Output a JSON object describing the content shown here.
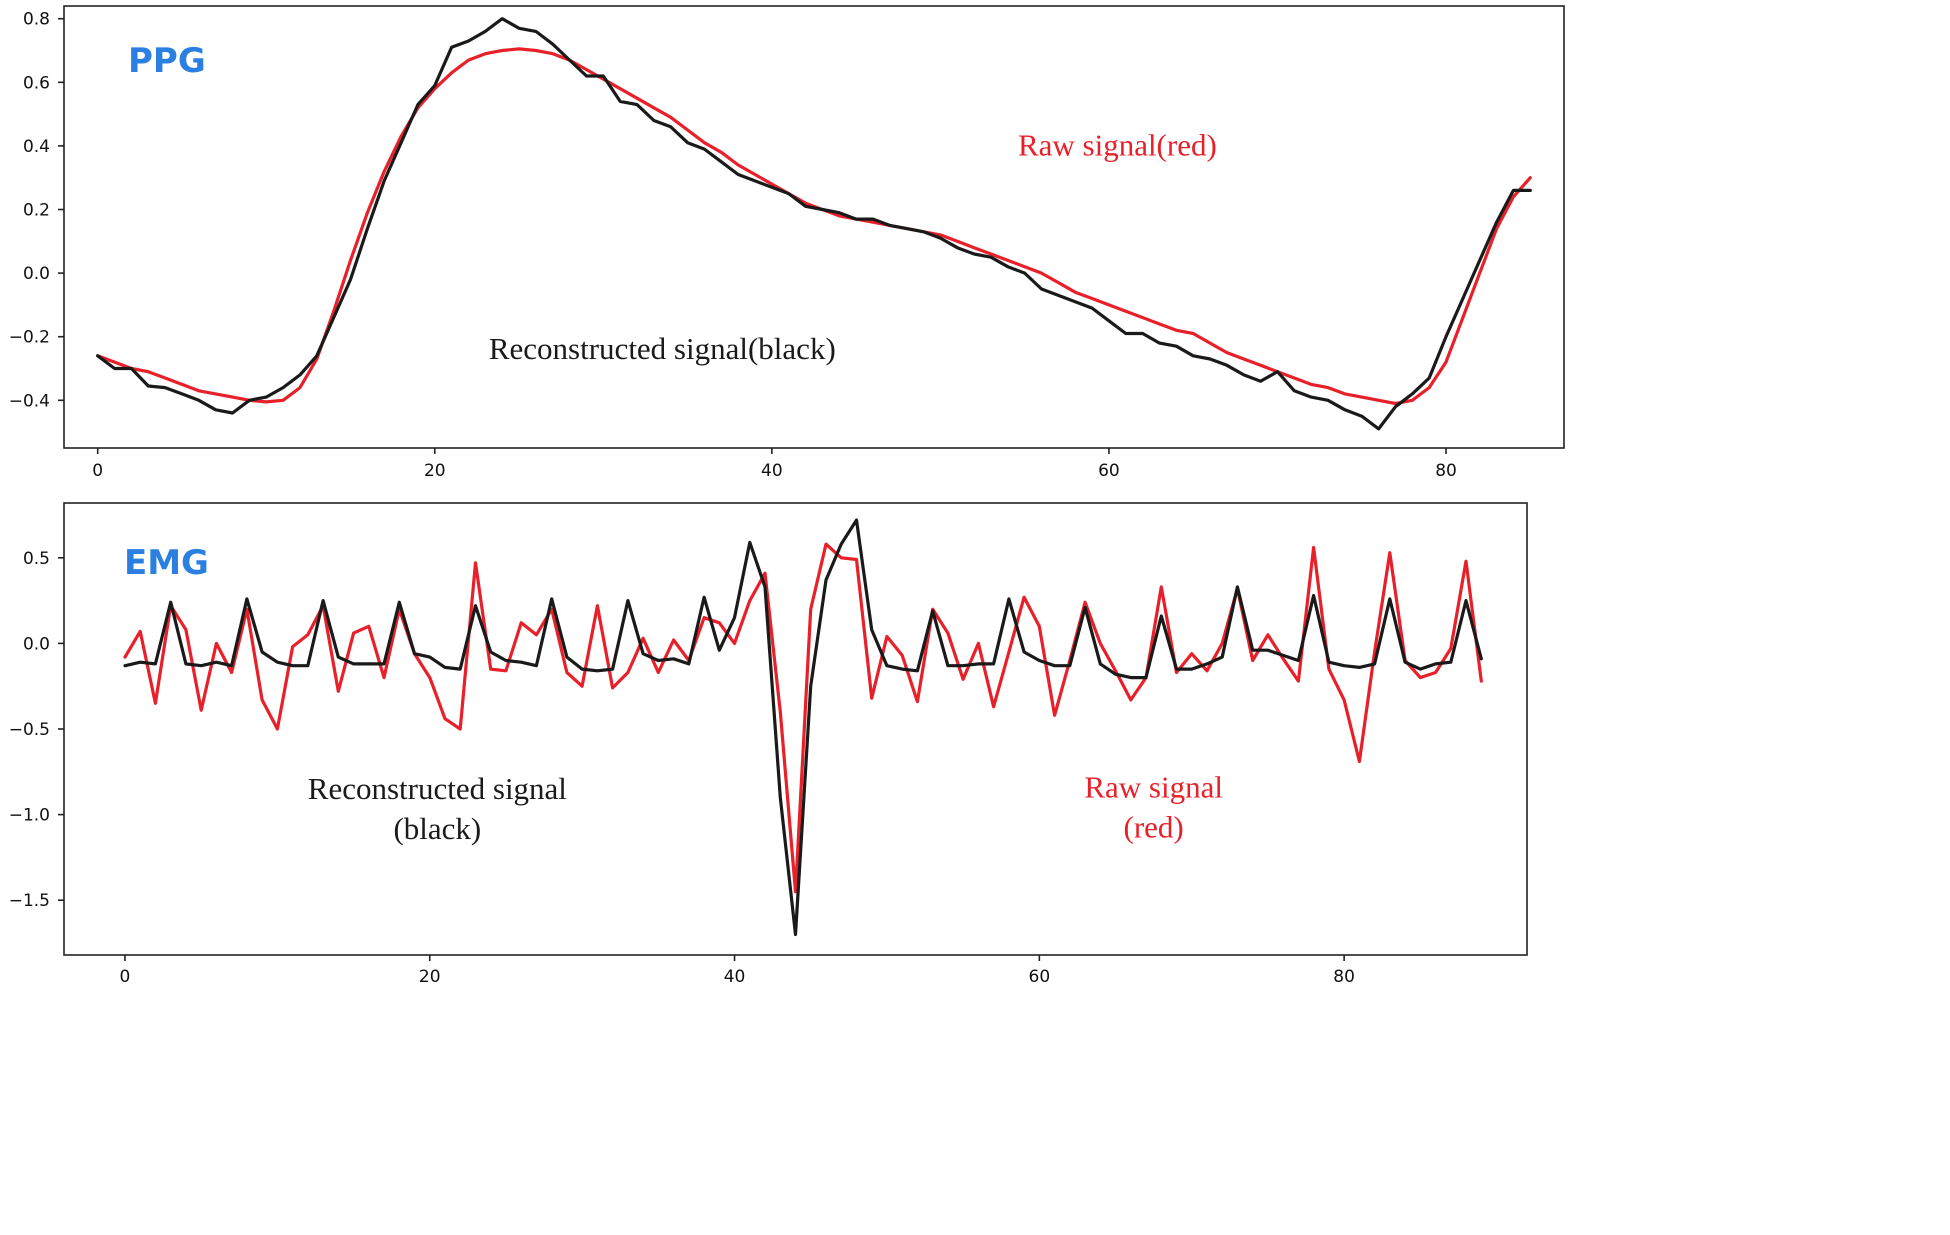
{
  "colors": {
    "raw": "#e8202a",
    "reconstructed": "#1a1a1a",
    "title": "#2a7fe0",
    "frame": "#222222"
  },
  "chart_data": [
    {
      "type": "line",
      "title": "PPG",
      "xlabel": "",
      "ylabel": "",
      "xlim": [
        -2,
        87
      ],
      "ylim": [
        -0.55,
        0.84
      ],
      "xticks": [
        0,
        20,
        40,
        60,
        80
      ],
      "yticks": [
        -0.4,
        -0.2,
        0.0,
        0.2,
        0.4,
        0.6,
        0.8
      ],
      "ytick_labels": [
        "−0.4",
        "−0.2",
        "0.0",
        "0.2",
        "0.4",
        "0.6",
        "0.8"
      ],
      "grid": false,
      "annotations": [
        {
          "lines": [
            "Raw signal(red)"
          ],
          "color_key": "raw",
          "x": 60.5,
          "y": 0.37
        },
        {
          "lines": [
            "Reconstructed signal(black)"
          ],
          "color_key": "reconstructed",
          "x": 33.5,
          "y": -0.27
        }
      ],
      "series": [
        {
          "color_key": "raw",
          "x": [
            0,
            1,
            2,
            3,
            4,
            5,
            6,
            7,
            8,
            9,
            10,
            11,
            12,
            13,
            14,
            15,
            16,
            17,
            18,
            19,
            20,
            21,
            22,
            23,
            24,
            25,
            26,
            27,
            28,
            29,
            30,
            31,
            32,
            33,
            34,
            35,
            36,
            37,
            38,
            39,
            40,
            41,
            42,
            43,
            44,
            45,
            46,
            47,
            48,
            49,
            50,
            51,
            52,
            53,
            54,
            55,
            56,
            57,
            58,
            59,
            60,
            61,
            62,
            63,
            64,
            65,
            66,
            67,
            68,
            69,
            70,
            71,
            72,
            73,
            74,
            75,
            76,
            77,
            78,
            79,
            80,
            81,
            82,
            83,
            84,
            85
          ],
          "values": [
            -0.26,
            -0.28,
            -0.3,
            -0.31,
            -0.33,
            -0.35,
            -0.37,
            -0.38,
            -0.39,
            -0.4,
            -0.405,
            -0.4,
            -0.36,
            -0.27,
            -0.12,
            0.04,
            0.19,
            0.32,
            0.43,
            0.52,
            0.58,
            0.63,
            0.67,
            0.69,
            0.7,
            0.705,
            0.7,
            0.69,
            0.67,
            0.64,
            0.61,
            0.58,
            0.55,
            0.52,
            0.49,
            0.45,
            0.41,
            0.38,
            0.34,
            0.31,
            0.28,
            0.25,
            0.22,
            0.2,
            0.18,
            0.17,
            0.16,
            0.15,
            0.14,
            0.13,
            0.12,
            0.1,
            0.08,
            0.06,
            0.04,
            0.02,
            0.0,
            -0.03,
            -0.06,
            -0.08,
            -0.1,
            -0.12,
            -0.14,
            -0.16,
            -0.18,
            -0.19,
            -0.22,
            -0.25,
            -0.27,
            -0.29,
            -0.31,
            -0.33,
            -0.35,
            -0.36,
            -0.38,
            -0.39,
            -0.4,
            -0.41,
            -0.4,
            -0.36,
            -0.28,
            -0.14,
            0.0,
            0.14,
            0.24,
            0.3
          ]
        },
        {
          "color_key": "reconstructed",
          "x": [
            0,
            1,
            2,
            3,
            4,
            5,
            6,
            7,
            8,
            9,
            10,
            11,
            12,
            13,
            14,
            15,
            16,
            17,
            18,
            19,
            20,
            21,
            22,
            23,
            24,
            25,
            26,
            27,
            28,
            29,
            30,
            31,
            32,
            33,
            34,
            35,
            36,
            37,
            38,
            39,
            40,
            41,
            42,
            43,
            44,
            45,
            46,
            47,
            48,
            49,
            50,
            51,
            52,
            53,
            54,
            55,
            56,
            57,
            58,
            59,
            60,
            61,
            62,
            63,
            64,
            65,
            66,
            67,
            68,
            69,
            70,
            71,
            72,
            73,
            74,
            75,
            76,
            77,
            78,
            79,
            80,
            81,
            82,
            83,
            84,
            85
          ],
          "values": [
            -0.26,
            -0.3,
            -0.3,
            -0.355,
            -0.36,
            -0.38,
            -0.4,
            -0.43,
            -0.44,
            -0.4,
            -0.39,
            -0.36,
            -0.32,
            -0.26,
            -0.14,
            -0.02,
            0.14,
            0.29,
            0.41,
            0.53,
            0.59,
            0.71,
            0.73,
            0.76,
            0.8,
            0.77,
            0.76,
            0.72,
            0.67,
            0.62,
            0.62,
            0.54,
            0.53,
            0.48,
            0.46,
            0.41,
            0.39,
            0.35,
            0.31,
            0.29,
            0.27,
            0.25,
            0.21,
            0.2,
            0.19,
            0.17,
            0.17,
            0.15,
            0.14,
            0.13,
            0.11,
            0.08,
            0.06,
            0.05,
            0.02,
            0.0,
            -0.05,
            -0.07,
            -0.09,
            -0.11,
            -0.15,
            -0.19,
            -0.19,
            -0.22,
            -0.23,
            -0.26,
            -0.27,
            -0.29,
            -0.32,
            -0.34,
            -0.31,
            -0.37,
            -0.39,
            -0.4,
            -0.43,
            -0.45,
            -0.49,
            -0.42,
            -0.38,
            -0.33,
            -0.2,
            -0.08,
            0.04,
            0.16,
            0.26,
            0.26
          ]
        }
      ]
    },
    {
      "type": "line",
      "title": "EMG",
      "xlabel": "",
      "ylabel": "",
      "xlim": [
        -4,
        92
      ],
      "ylim": [
        -1.82,
        0.82
      ],
      "xticks": [
        0,
        20,
        40,
        60,
        80
      ],
      "yticks": [
        -1.5,
        -1.0,
        -0.5,
        0.0,
        0.5
      ],
      "ytick_labels": [
        "−1.5",
        "−1.0",
        "−0.5",
        "0.0",
        "0.5"
      ],
      "grid": false,
      "annotations": [
        {
          "lines": [
            "Reconstructed signal",
            "(black)"
          ],
          "color_key": "reconstructed",
          "x": 20.5,
          "y": -0.91
        },
        {
          "lines": [
            "Raw signal",
            "(red)"
          ],
          "color_key": "raw",
          "x": 67.5,
          "y": -0.9
        }
      ],
      "series": [
        {
          "color_key": "raw",
          "x": [
            0,
            1,
            2,
            3,
            4,
            5,
            6,
            7,
            8,
            9,
            10,
            11,
            12,
            13,
            14,
            15,
            16,
            17,
            18,
            19,
            20,
            21,
            22,
            23,
            24,
            25,
            26,
            27,
            28,
            29,
            30,
            31,
            32,
            33,
            34,
            35,
            36,
            37,
            38,
            39,
            40,
            41,
            42,
            43,
            44,
            45,
            46,
            47,
            48,
            49,
            50,
            51,
            52,
            53,
            54,
            55,
            56,
            57,
            58,
            59,
            60,
            61,
            62,
            63,
            64,
            65,
            66,
            67,
            68,
            69,
            70,
            71,
            72,
            73,
            74,
            75,
            76,
            77,
            78,
            79,
            80,
            81,
            82,
            83,
            84,
            85,
            86,
            87,
            88,
            89
          ],
          "values": [
            -0.08,
            0.07,
            -0.35,
            0.22,
            0.08,
            -0.39,
            0.0,
            -0.17,
            0.2,
            -0.33,
            -0.5,
            -0.02,
            0.05,
            0.22,
            -0.28,
            0.06,
            0.1,
            -0.2,
            0.2,
            -0.06,
            -0.2,
            -0.44,
            -0.5,
            0.47,
            -0.15,
            -0.16,
            0.12,
            0.05,
            0.2,
            -0.17,
            -0.25,
            0.22,
            -0.26,
            -0.17,
            0.03,
            -0.17,
            0.02,
            -0.1,
            0.15,
            0.12,
            0.0,
            0.25,
            0.41,
            -0.4,
            -1.45,
            0.2,
            0.58,
            0.5,
            0.49,
            -0.32,
            0.04,
            -0.07,
            -0.34,
            0.2,
            0.06,
            -0.21,
            0.0,
            -0.37,
            -0.05,
            0.27,
            0.1,
            -0.42,
            -0.1,
            0.24,
            0.0,
            -0.16,
            -0.33,
            -0.2,
            0.33,
            -0.17,
            -0.06,
            -0.16,
            0.0,
            0.32,
            -0.1,
            0.05,
            -0.09,
            -0.22,
            0.56,
            -0.15,
            -0.33,
            -0.69,
            -0.05,
            0.53,
            -0.1,
            -0.2,
            -0.17,
            -0.03,
            0.48,
            -0.22
          ]
        },
        {
          "color_key": "reconstructed",
          "x": [
            0,
            1,
            2,
            3,
            4,
            5,
            6,
            7,
            8,
            9,
            10,
            11,
            12,
            13,
            14,
            15,
            16,
            17,
            18,
            19,
            20,
            21,
            22,
            23,
            24,
            25,
            26,
            27,
            28,
            29,
            30,
            31,
            32,
            33,
            34,
            35,
            36,
            37,
            38,
            39,
            40,
            41,
            42,
            43,
            44,
            45,
            46,
            47,
            48,
            49,
            50,
            51,
            52,
            53,
            54,
            55,
            56,
            57,
            58,
            59,
            60,
            61,
            62,
            63,
            64,
            65,
            66,
            67,
            68,
            69,
            70,
            71,
            72,
            73,
            74,
            75,
            76,
            77,
            78,
            79,
            80,
            81,
            82,
            83,
            84,
            85,
            86,
            87,
            88,
            89
          ],
          "values": [
            -0.13,
            -0.11,
            -0.12,
            0.24,
            -0.12,
            -0.13,
            -0.11,
            -0.13,
            0.26,
            -0.05,
            -0.11,
            -0.13,
            -0.13,
            0.25,
            -0.08,
            -0.12,
            -0.12,
            -0.12,
            0.24,
            -0.06,
            -0.08,
            -0.14,
            -0.15,
            0.22,
            -0.05,
            -0.1,
            -0.11,
            -0.13,
            0.26,
            -0.08,
            -0.15,
            -0.16,
            -0.15,
            0.25,
            -0.06,
            -0.1,
            -0.09,
            -0.12,
            0.27,
            -0.04,
            0.15,
            0.59,
            0.33,
            -0.9,
            -1.7,
            -0.25,
            0.37,
            0.58,
            0.72,
            0.08,
            -0.13,
            -0.15,
            -0.16,
            0.19,
            -0.13,
            -0.13,
            -0.12,
            -0.12,
            0.26,
            -0.05,
            -0.1,
            -0.13,
            -0.13,
            0.21,
            -0.12,
            -0.18,
            -0.2,
            -0.2,
            0.16,
            -0.15,
            -0.15,
            -0.12,
            -0.08,
            0.33,
            -0.04,
            -0.04,
            -0.07,
            -0.1,
            0.28,
            -0.11,
            -0.13,
            -0.14,
            -0.12,
            0.26,
            -0.11,
            -0.15,
            -0.12,
            -0.11,
            0.25,
            -0.09
          ]
        }
      ]
    }
  ]
}
